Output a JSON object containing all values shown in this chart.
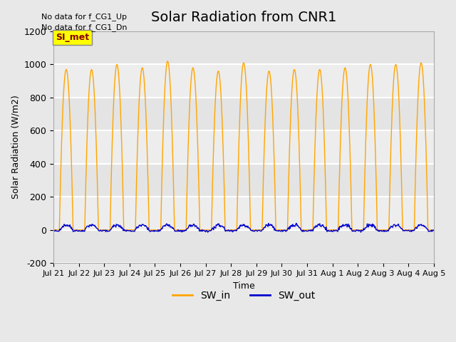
{
  "title": "Solar Radiation from CNR1",
  "ylabel": "Solar Radiation (W/m2)",
  "xlabel": "Time",
  "ylim": [
    -200,
    1200
  ],
  "xtick_labels": [
    "Jul 21",
    "Jul 22",
    "Jul 23",
    "Jul 24",
    "Jul 25",
    "Jul 26",
    "Jul 27",
    "Jul 28",
    "Jul 29",
    "Jul 30",
    "Jul 31",
    "Aug 1",
    "Aug 2",
    "Aug 3",
    "Aug 4",
    "Aug 5"
  ],
  "no_data_text1": "No data for f_CG1_Up",
  "no_data_text2": "No data for f_CG1_Dn",
  "si_met_label": "SI_met",
  "sw_in_color": "#FFA500",
  "sw_out_color": "#0000CD",
  "bg_color": "#E8E8E8",
  "plot_bg_color": "#F0F0F0",
  "n_days": 15,
  "sw_in_peaks": [
    970,
    970,
    1000,
    980,
    1020,
    980,
    960,
    1010,
    960,
    970,
    970,
    980,
    1000,
    1000,
    1010
  ],
  "sw_out_amplitude": 30,
  "grid_color": "white",
  "title_fontsize": 14,
  "ytick_labels": [
    "-200",
    "0",
    "200",
    "400",
    "600",
    "800",
    "1000",
    "1200"
  ],
  "ytick_vals": [
    -200,
    0,
    200,
    400,
    600,
    800,
    1000,
    1200
  ]
}
